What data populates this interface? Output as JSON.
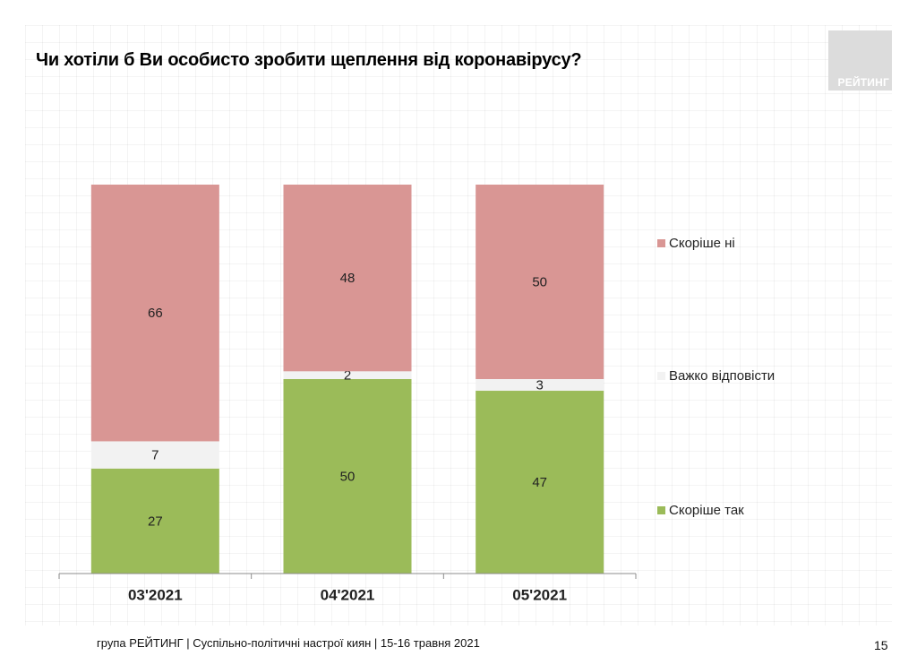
{
  "title": "Чи хотіли б Ви особисто зробити щеплення від коронавірусу?",
  "logo_text": "РЕЙТИНГ",
  "footer": "група РЕЙТИНГ  | Суспільно-політичні настрої киян  | 15-16 травня 2021",
  "page_number": "15",
  "chart_data": {
    "type": "bar",
    "stacked": true,
    "categories": [
      "03'2021",
      "04'2021",
      "05'2021"
    ],
    "series": [
      {
        "name": "Скоріше так",
        "color": "#9bbb59",
        "values": [
          27,
          50,
          47
        ]
      },
      {
        "name": "Важко відповісти",
        "color": "#f2f2f2",
        "values": [
          7,
          2,
          3
        ]
      },
      {
        "name": "Скоріше ні",
        "color": "#d99694",
        "values": [
          66,
          48,
          50
        ]
      }
    ],
    "ylim": [
      0,
      100
    ],
    "legend_position": "right",
    "grid": false,
    "data_labels": true
  }
}
